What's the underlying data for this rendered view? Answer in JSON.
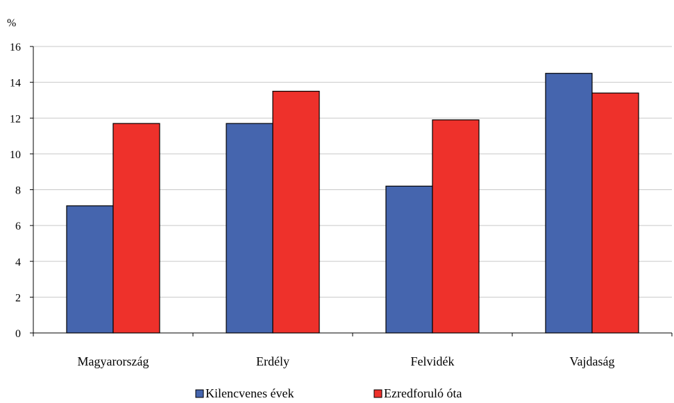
{
  "chart_data": {
    "type": "bar",
    "unit_label": "%",
    "categories": [
      "Magyarország",
      "Erdély",
      "Felvidék",
      "Vajdaság"
    ],
    "series": [
      {
        "name": "Kilencvenes évek",
        "color": "#4565ae",
        "values": [
          7.1,
          11.7,
          8.2,
          14.5
        ]
      },
      {
        "name": "Ezredforuló óta",
        "color": "#ee312b",
        "values": [
          11.7,
          13.5,
          11.9,
          13.4
        ]
      }
    ],
    "ylim": [
      0,
      16
    ],
    "yticks": [
      "0",
      "2",
      "4",
      "6",
      "8",
      "10",
      "12",
      "14",
      "16"
    ],
    "grid": true,
    "legend_position": "bottom"
  }
}
